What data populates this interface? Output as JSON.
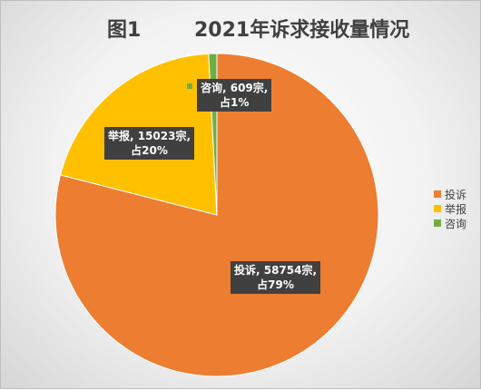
{
  "chart_data": {
    "type": "pie",
    "title_prefix": "图1",
    "title": "2021年诉求接收量情况",
    "slices": [
      {
        "name": "投诉",
        "value": 58754,
        "percent": 79,
        "color": "#ED7D31",
        "label_line1": "投诉, 58754宗,",
        "label_line2": "占79%"
      },
      {
        "name": "举报",
        "value": 15023,
        "percent": 20,
        "color": "#FFC000",
        "label_line1": "举报, 15023宗,",
        "label_line2": "占20%"
      },
      {
        "name": "咨询",
        "value": 609,
        "percent": 1,
        "color": "#70AD47",
        "label_line1": "咨询, 609宗,",
        "label_line2": "占1%"
      }
    ],
    "legend": {
      "position": "right",
      "items": [
        "投诉",
        "举报",
        "咨询"
      ]
    },
    "start_angle": "12 o'clock",
    "direction": "clockwise"
  }
}
